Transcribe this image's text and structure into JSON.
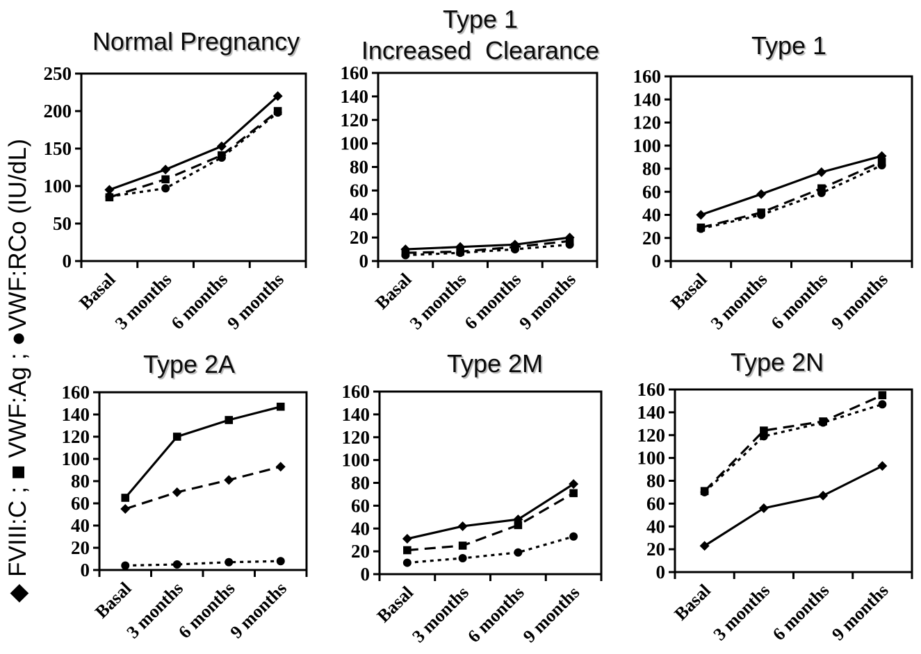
{
  "page": {
    "background": "#ffffff",
    "ink_color": "#000000",
    "title_shadow_color": "#b4b4b4"
  },
  "y_axis_legend": {
    "text": "◆ FVIII:C ; ■ VWF:Ag ; ●VWF:RCo (IU/dL)",
    "items": [
      {
        "marker": "diamond",
        "glyph": "◆",
        "label": "FVIII:C"
      },
      {
        "marker": "square",
        "glyph": "■",
        "label": "VWF:Ag"
      },
      {
        "marker": "circle",
        "glyph": "●",
        "label": "VWF:RCo"
      }
    ],
    "unit": "(IU/dL)"
  },
  "categories": [
    "Basal",
    "3 months",
    "6 months",
    "9 months"
  ],
  "chart_data": [
    {
      "id": "normal-pregnancy",
      "type": "line",
      "title": "Normal Pregnancy",
      "xlabel": "",
      "ylabel": "",
      "ylim": [
        0,
        250
      ],
      "ytick_step": 50,
      "grid": false,
      "legend_position": "none",
      "categories": [
        "Basal",
        "3 months",
        "6 months",
        "9 months"
      ],
      "series": [
        {
          "name": "FVIII:C",
          "marker": "diamond",
          "line_style": "solid",
          "values": [
            95,
            122,
            153,
            220
          ]
        },
        {
          "name": "VWF:Ag",
          "marker": "square",
          "line_style": "long-dash",
          "values": [
            85,
            109,
            141,
            200
          ]
        },
        {
          "name": "VWF:RCo",
          "marker": "circle",
          "line_style": "short-dash",
          "values": [
            86,
            97,
            138,
            198
          ]
        }
      ]
    },
    {
      "id": "type1-increased-clearance",
      "type": "line",
      "title": "Type 1\nIncreased  Clearance",
      "xlabel": "",
      "ylabel": "",
      "ylim": [
        0,
        160
      ],
      "ytick_step": 20,
      "grid": false,
      "legend_position": "none",
      "categories": [
        "Basal",
        "3 months",
        "6 months",
        "9 months"
      ],
      "series": [
        {
          "name": "FVIII:C",
          "marker": "diamond",
          "line_style": "solid",
          "values": [
            10,
            12,
            14,
            20
          ]
        },
        {
          "name": "VWF:Ag",
          "marker": "square",
          "line_style": "long-dash",
          "values": [
            7,
            8,
            12,
            17
          ]
        },
        {
          "name": "VWF:RCo",
          "marker": "circle",
          "line_style": "short-dash",
          "values": [
            5,
            7,
            10,
            14
          ]
        }
      ]
    },
    {
      "id": "type1",
      "type": "line",
      "title": "Type 1",
      "xlabel": "",
      "ylabel": "",
      "ylim": [
        0,
        160
      ],
      "ytick_step": 20,
      "grid": false,
      "legend_position": "none",
      "categories": [
        "Basal",
        "3 months",
        "6 months",
        "9 months"
      ],
      "series": [
        {
          "name": "FVIII:C",
          "marker": "diamond",
          "line_style": "solid",
          "values": [
            40,
            58,
            77,
            91
          ]
        },
        {
          "name": "VWF:Ag",
          "marker": "square",
          "line_style": "long-dash",
          "values": [
            29,
            42,
            63,
            86
          ]
        },
        {
          "name": "VWF:RCo",
          "marker": "circle",
          "line_style": "short-dash",
          "values": [
            28,
            40,
            59,
            83
          ]
        }
      ]
    },
    {
      "id": "type2a",
      "type": "line",
      "title": "Type 2A",
      "xlabel": "",
      "ylabel": "",
      "ylim": [
        0,
        160
      ],
      "ytick_step": 20,
      "grid": false,
      "legend_position": "none",
      "categories": [
        "Basal",
        "3 months",
        "6 months",
        "9 months"
      ],
      "series": [
        {
          "name": "VWF:Ag",
          "marker": "square",
          "line_style": "solid",
          "values": [
            65,
            120,
            135,
            147
          ]
        },
        {
          "name": "FVIII:C",
          "marker": "diamond",
          "line_style": "long-dash",
          "values": [
            55,
            70,
            81,
            93
          ]
        },
        {
          "name": "VWF:RCo",
          "marker": "circle",
          "line_style": "short-dash",
          "values": [
            4,
            5,
            7,
            8
          ]
        }
      ]
    },
    {
      "id": "type2m",
      "type": "line",
      "title": "Type 2M",
      "xlabel": "",
      "ylabel": "",
      "ylim": [
        0,
        160
      ],
      "ytick_step": 20,
      "grid": false,
      "legend_position": "none",
      "categories": [
        "Basal",
        "3 months",
        "6 months",
        "9 months"
      ],
      "series": [
        {
          "name": "FVIII:C",
          "marker": "diamond",
          "line_style": "solid",
          "values": [
            31,
            42,
            48,
            79
          ]
        },
        {
          "name": "VWF:Ag",
          "marker": "square",
          "line_style": "long-dash",
          "values": [
            21,
            25,
            43,
            71
          ]
        },
        {
          "name": "VWF:RCo",
          "marker": "circle",
          "line_style": "short-dash",
          "values": [
            10,
            14,
            19,
            33
          ]
        }
      ]
    },
    {
      "id": "type2n",
      "type": "line",
      "title": "Type 2N",
      "xlabel": "",
      "ylabel": "",
      "ylim": [
        0,
        160
      ],
      "ytick_step": 20,
      "grid": false,
      "legend_position": "none",
      "categories": [
        "Basal",
        "3 months",
        "6 months",
        "9 months"
      ],
      "series": [
        {
          "name": "VWF:RCo",
          "marker": "circle",
          "line_style": "short-dash",
          "values": [
            70,
            119,
            131,
            147
          ]
        },
        {
          "name": "VWF:Ag",
          "marker": "square",
          "line_style": "long-dash",
          "values": [
            71,
            124,
            132,
            155
          ]
        },
        {
          "name": "FVIII:C",
          "marker": "diamond",
          "line_style": "solid",
          "values": [
            23,
            56,
            67,
            93
          ]
        }
      ]
    }
  ]
}
